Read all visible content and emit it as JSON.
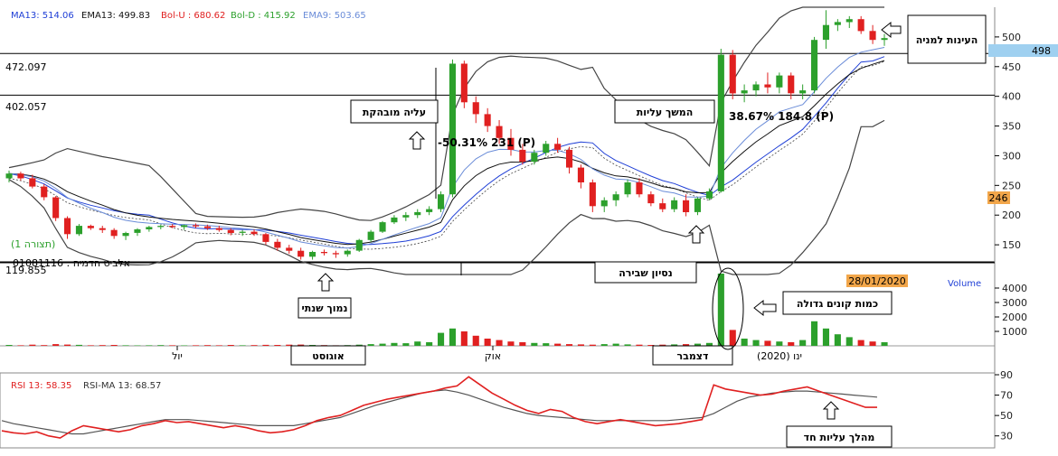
{
  "legend": {
    "ma13": "MA13: 514.06",
    "ema13": "EMA13: 499.83",
    "bol_u": "Bol-U : 680.62",
    "bol_d": "Bol-D : 415.92",
    "ema9": "EMA9: 503.65"
  },
  "colors": {
    "up": "#2ca02c",
    "down": "#e02020",
    "ma13": "#1f3fd6",
    "ema13": "#111111",
    "ema9": "#6a8cd8",
    "bol": "#444444",
    "rsi": "#e02020",
    "rsi_ma": "#555555",
    "price_tag_bg": "#9fd0f0",
    "warn_tag_bg": "#f2a64a"
  },
  "price_panel": {
    "hlines": [
      {
        "value": 472.097,
        "label": "472.097"
      },
      {
        "value": 402.057,
        "label": "402.057"
      },
      {
        "value": 119.855,
        "label": "119.855"
      }
    ],
    "y_ticks": [
      "500",
      "450",
      "400",
      "350",
      "300",
      "250",
      "200",
      "150"
    ],
    "current_price_tag": "498",
    "level_tag": "246",
    "left_caption_1": "(תצורה 1)",
    "left_caption_2": "אלביט הדמיה : 01081116",
    "fib_text_1": "-50.31% 231 (P)",
    "fib_text_2": "38.67% 184.8 (P)"
  },
  "annotations": {
    "strong_rise": "עליה מובהקת",
    "continued_rise": "המשך עליות",
    "interest": "העינות למניה",
    "annual_low": "נמוך שנתי",
    "breakout_attempt": "נסיון שבירה",
    "big_volume": "כמות קונים גדולה",
    "sharp_rise": "מהלך עליות חד"
  },
  "volume_panel": {
    "label": "Volume",
    "date_tag": "28/01/2020",
    "y_ticks": [
      "4000",
      "3000",
      "2000",
      "1000"
    ]
  },
  "x_axis": {
    "labels": [
      "יול",
      "אוגוסט",
      "אוק",
      "דצמבר",
      "ינו (2020)"
    ]
  },
  "rsi_panel": {
    "rsi_label": "RSI 13: 58.35",
    "rsi_ma_label": "RSI-MA 13: 68.57",
    "y_ticks": [
      "90",
      "70",
      "50",
      "30"
    ]
  },
  "chart_data": {
    "type": "candlestick",
    "ylim": [
      100,
      550
    ],
    "candles": [
      [
        262,
        275,
        255,
        270
      ],
      [
        270,
        273,
        258,
        262
      ],
      [
        262,
        268,
        245,
        248
      ],
      [
        248,
        252,
        225,
        230
      ],
      [
        230,
        232,
        190,
        195
      ],
      [
        195,
        198,
        160,
        168
      ],
      [
        168,
        185,
        165,
        182
      ],
      [
        182,
        184,
        175,
        178
      ],
      [
        178,
        182,
        170,
        175
      ],
      [
        175,
        178,
        160,
        165
      ],
      [
        165,
        172,
        158,
        170
      ],
      [
        170,
        178,
        165,
        176
      ],
      [
        176,
        182,
        172,
        180
      ],
      [
        180,
        184,
        176,
        182
      ],
      [
        182,
        185,
        178,
        180
      ],
      [
        180,
        184,
        175,
        183
      ],
      [
        183,
        186,
        178,
        181
      ],
      [
        181,
        184,
        175,
        178
      ],
      [
        178,
        182,
        172,
        175
      ],
      [
        175,
        178,
        166,
        170
      ],
      [
        170,
        175,
        165,
        172
      ],
      [
        172,
        176,
        165,
        168
      ],
      [
        168,
        170,
        150,
        155
      ],
      [
        155,
        160,
        140,
        145
      ],
      [
        145,
        150,
        135,
        140
      ],
      [
        140,
        145,
        125,
        130
      ],
      [
        130,
        140,
        125,
        138
      ],
      [
        138,
        142,
        132,
        136
      ],
      [
        136,
        140,
        128,
        134
      ],
      [
        134,
        142,
        130,
        140
      ],
      [
        140,
        160,
        138,
        158
      ],
      [
        158,
        175,
        155,
        172
      ],
      [
        172,
        190,
        170,
        188
      ],
      [
        188,
        200,
        185,
        196
      ],
      [
        196,
        205,
        190,
        200
      ],
      [
        200,
        210,
        195,
        205
      ],
      [
        205,
        215,
        200,
        210
      ],
      [
        210,
        240,
        205,
        235
      ],
      [
        235,
        462,
        230,
        455
      ],
      [
        455,
        460,
        380,
        390
      ],
      [
        390,
        400,
        355,
        370
      ],
      [
        370,
        380,
        340,
        350
      ],
      [
        350,
        360,
        320,
        330
      ],
      [
        330,
        345,
        300,
        310
      ],
      [
        310,
        320,
        285,
        290
      ],
      [
        290,
        310,
        285,
        305
      ],
      [
        305,
        325,
        300,
        320
      ],
      [
        320,
        330,
        305,
        310
      ],
      [
        310,
        315,
        270,
        280
      ],
      [
        280,
        285,
        245,
        255
      ],
      [
        255,
        260,
        205,
        215
      ],
      [
        215,
        230,
        205,
        225
      ],
      [
        225,
        240,
        215,
        235
      ],
      [
        235,
        260,
        230,
        255
      ],
      [
        255,
        262,
        230,
        235
      ],
      [
        235,
        240,
        215,
        220
      ],
      [
        220,
        228,
        205,
        210
      ],
      [
        210,
        230,
        205,
        225
      ],
      [
        225,
        235,
        198,
        205
      ],
      [
        205,
        230,
        200,
        228
      ],
      [
        228,
        245,
        225,
        240
      ],
      [
        240,
        480,
        238,
        470
      ],
      [
        470,
        478,
        395,
        405
      ],
      [
        405,
        420,
        390,
        410
      ],
      [
        410,
        425,
        400,
        420
      ],
      [
        420,
        440,
        405,
        415
      ],
      [
        415,
        440,
        405,
        435
      ],
      [
        435,
        440,
        395,
        405
      ],
      [
        405,
        420,
        395,
        410
      ],
      [
        410,
        500,
        405,
        495
      ],
      [
        495,
        545,
        480,
        520
      ],
      [
        520,
        530,
        510,
        525
      ],
      [
        525,
        535,
        515,
        530
      ],
      [
        530,
        535,
        505,
        510
      ],
      [
        510,
        520,
        488,
        495
      ],
      [
        495,
        505,
        485,
        498
      ]
    ],
    "volumes": [
      60,
      40,
      80,
      50,
      120,
      90,
      70,
      40,
      50,
      60,
      40,
      30,
      40,
      50,
      40,
      30,
      40,
      50,
      40,
      60,
      40,
      50,
      70,
      60,
      80,
      90,
      60,
      50,
      40,
      50,
      80,
      120,
      150,
      200,
      180,
      300,
      250,
      900,
      1200,
      1000,
      700,
      500,
      400,
      300,
      250,
      200,
      180,
      150,
      120,
      100,
      80,
      120,
      150,
      100,
      80,
      60,
      80,
      100,
      120,
      150,
      200,
      5000,
      1100,
      500,
      400,
      350,
      300,
      250,
      400,
      1700,
      1200,
      800,
      600,
      400,
      300,
      250
    ],
    "rsi": [
      35,
      33,
      32,
      34,
      30,
      28,
      35,
      40,
      38,
      36,
      34,
      36,
      40,
      42,
      45,
      43,
      44,
      42,
      40,
      38,
      40,
      38,
      35,
      33,
      34,
      36,
      40,
      45,
      48,
      50,
      55,
      60,
      63,
      66,
      68,
      70,
      72,
      74,
      77,
      79,
      88,
      80,
      72,
      66,
      60,
      55,
      52,
      56,
      54,
      48,
      44,
      42,
      44,
      46,
      44,
      42,
      40,
      41,
      42,
      44,
      46,
      80,
      76,
      74,
      72,
      70,
      71,
      74,
      76,
      78,
      74,
      70,
      66,
      62,
      58,
      58
    ],
    "rsi_ma": [
      45,
      42,
      40,
      38,
      36,
      34,
      32,
      32,
      34,
      36,
      38,
      40,
      42,
      44,
      46,
      46,
      46,
      45,
      44,
      43,
      42,
      41,
      40,
      40,
      40,
      40,
      42,
      44,
      46,
      48,
      52,
      56,
      60,
      63,
      66,
      69,
      72,
      74,
      75,
      73,
      70,
      66,
      62,
      58,
      55,
      52,
      50,
      49,
      48,
      47,
      46,
      45,
      45,
      45,
      45,
      45,
      45,
      45,
      46,
      47,
      48,
      52,
      58,
      64,
      68,
      70,
      72,
      73,
      74,
      74,
      73,
      72,
      71,
      70,
      69,
      68
    ]
  }
}
